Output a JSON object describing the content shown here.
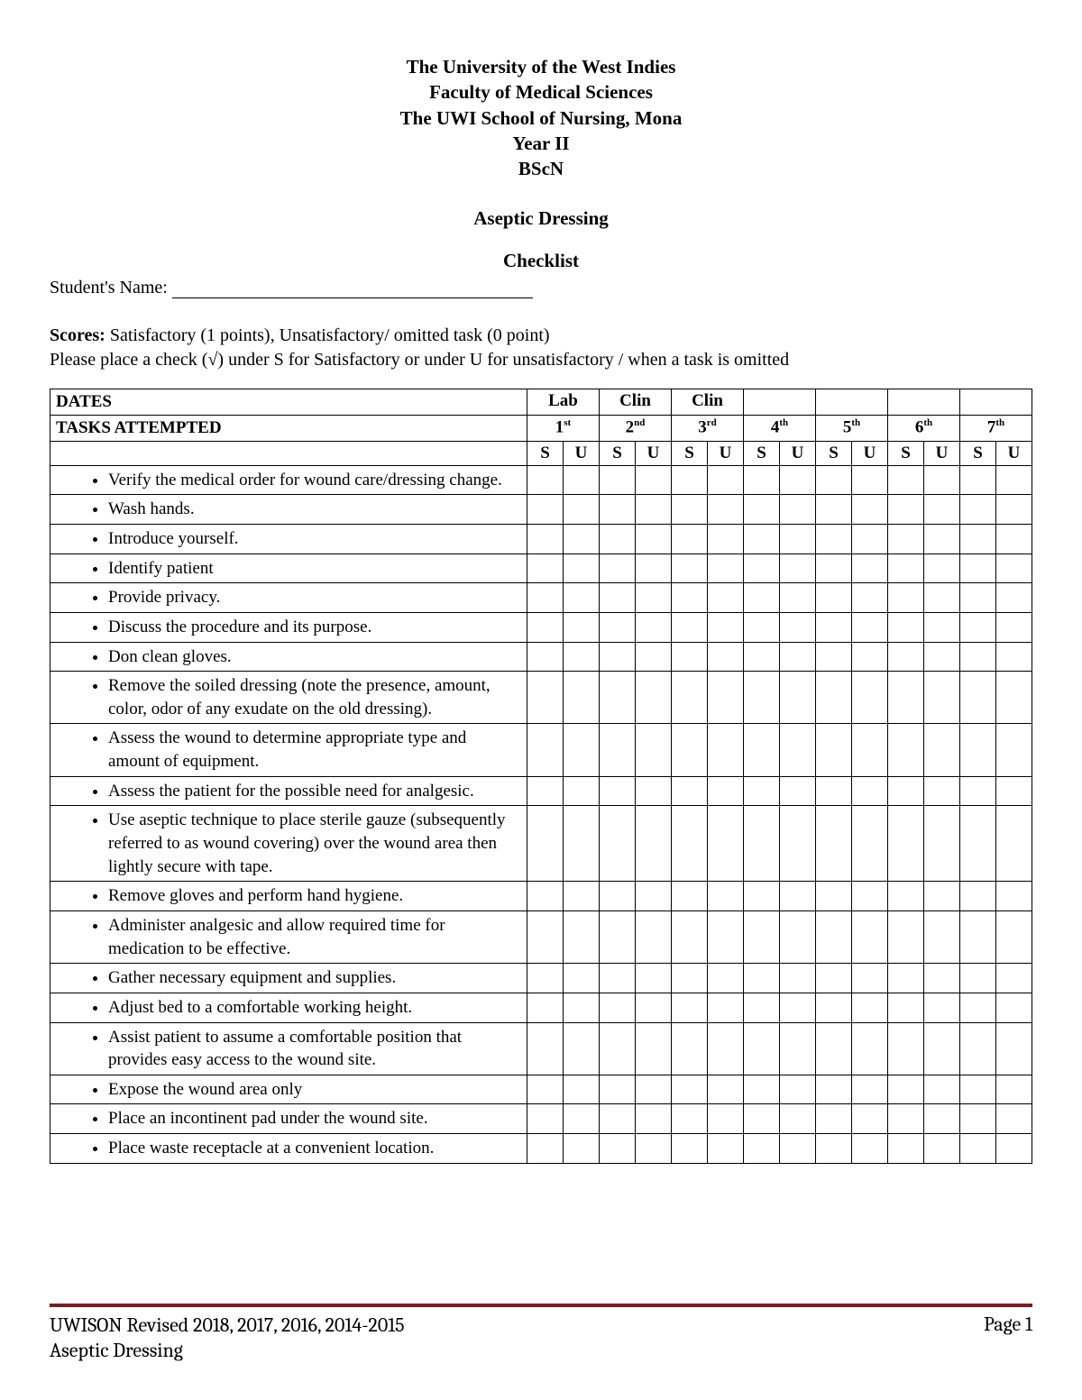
{
  "header": {
    "lines": [
      "The University of the West Indies",
      "Faculty of Medical Sciences",
      "The UWI School of Nursing, Mona",
      "Year II",
      "BScN"
    ],
    "topic": "Aseptic Dressing",
    "subtitle": "Checklist"
  },
  "student_name_label": "Student's Name:",
  "scores": {
    "label": "Scores:",
    "text": "Satisfactory (1 points), Unsatisfactory/ omitted task (0 point)",
    "instruction": "Please place a check (√) under S for Satisfactory or under U for unsatisfactory / when a task is omitted"
  },
  "table": {
    "dates_label": "DATES",
    "tasks_label": "TASKS ATTEMPTED",
    "group_labels": [
      "Lab",
      "Clin",
      "Clin",
      "",
      "",
      "",
      ""
    ],
    "attempts": [
      {
        "num": "1",
        "suf": "st"
      },
      {
        "num": "2",
        "suf": "nd"
      },
      {
        "num": "3",
        "suf": "rd"
      },
      {
        "num": "4",
        "suf": "th"
      },
      {
        "num": "5",
        "suf": "th"
      },
      {
        "num": "6",
        "suf": "th"
      },
      {
        "num": "7",
        "suf": "th"
      }
    ],
    "su": {
      "s": "S",
      "u": "U"
    },
    "tasks": [
      "Verify the medical order for wound care/dressing change.",
      "Wash hands.",
      "Introduce yourself.",
      "Identify patient",
      "Provide privacy.",
      "Discuss the procedure and its purpose.",
      "Don clean gloves.",
      "Remove the soiled dressing (note the presence, amount, color, odor of any exudate on the old dressing).",
      "Assess the wound to determine appropriate type and amount of equipment.",
      "Assess the patient for the possible need for analgesic.",
      "Use aseptic technique to place sterile gauze (subsequently referred to as wound covering) over the wound area then lightly secure with tape.",
      "Remove gloves and perform hand hygiene.",
      "Administer analgesic and allow required time for medication to be effective.",
      "Gather necessary equipment and supplies.",
      "Adjust bed to a comfortable working height.",
      "Assist patient to assume a comfortable position that provides easy access to the wound site.",
      "Expose the wound area only",
      "Place an incontinent pad under the wound site.",
      "Place waste receptacle at a convenient location."
    ]
  },
  "footer": {
    "left1": "UWISON Revised 2018, 2017, 2016, 2014-2015",
    "left2": "Aseptic Dressing",
    "right": "Page 1"
  },
  "colors": {
    "rule": "#7a1d1d",
    "text": "#000000",
    "background": "#ffffff"
  }
}
